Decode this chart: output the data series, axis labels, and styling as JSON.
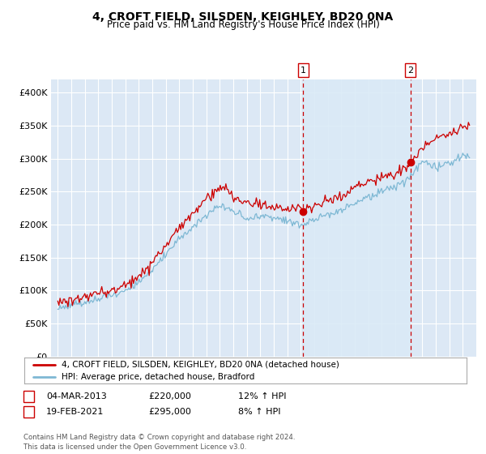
{
  "title": "4, CROFT FIELD, SILSDEN, KEIGHLEY, BD20 0NA",
  "subtitle": "Price paid vs. HM Land Registry's House Price Index (HPI)",
  "ylim": [
    0,
    420000
  ],
  "yticks": [
    0,
    50000,
    100000,
    150000,
    200000,
    250000,
    300000,
    350000,
    400000
  ],
  "background_color": "#ffffff",
  "plot_bg_color": "#dce8f5",
  "plot_bg_color2": "#e8f2fb",
  "grid_color": "#ffffff",
  "red_line_color": "#cc0000",
  "blue_line_color": "#7eb8d4",
  "legend_entry1": "4, CROFT FIELD, SILSDEN, KEIGHLEY, BD20 0NA (detached house)",
  "legend_entry2": "HPI: Average price, detached house, Bradford",
  "table_row1": [
    "1",
    "04-MAR-2013",
    "£220,000",
    "12% ↑ HPI"
  ],
  "table_row2": [
    "2",
    "19-FEB-2021",
    "£295,000",
    "8% ↑ HPI"
  ],
  "footer": "Contains HM Land Registry data © Crown copyright and database right 2024.\nThis data is licensed under the Open Government Licence v3.0.",
  "sale1_x": 2013.17,
  "sale1_y": 220000,
  "sale2_x": 2021.13,
  "sale2_y": 295000,
  "xmin": 1994.5,
  "xmax": 2026.0
}
